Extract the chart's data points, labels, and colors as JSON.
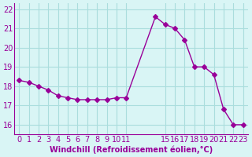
{
  "x": [
    0,
    1,
    2,
    3,
    4,
    5,
    6,
    7,
    8,
    9,
    10,
    11,
    14,
    15,
    16,
    17,
    18,
    19,
    20,
    21,
    22,
    23
  ],
  "y": [
    18.3,
    18.2,
    18.0,
    17.8,
    17.5,
    17.4,
    17.3,
    17.3,
    17.3,
    17.3,
    17.4,
    17.4,
    21.6,
    21.2,
    21.0,
    20.4,
    19.0,
    19.0,
    18.6,
    16.8,
    16.0,
    16.0
  ],
  "line_color": "#990099",
  "marker": "D",
  "marker_size": 3,
  "bg_color": "#d9f5f5",
  "grid_color": "#aadddd",
  "xlabel": "Windchill (Refroidissement éolien,°C)",
  "xlabel_color": "#990099",
  "tick_color": "#990099",
  "ylim": [
    15.5,
    22.3
  ],
  "xlim": [
    -0.5,
    23.5
  ],
  "yticks": [
    16,
    17,
    18,
    19,
    20,
    21,
    22
  ],
  "xticks": [
    0,
    1,
    2,
    3,
    4,
    5,
    6,
    7,
    8,
    9,
    10,
    11,
    15,
    16,
    17,
    18,
    19,
    20,
    21,
    22,
    23
  ],
  "xtick_labels": [
    "0",
    "1",
    "2",
    "3",
    "4",
    "5",
    "6",
    "7",
    "8",
    "9",
    "10",
    "11",
    "15",
    "16",
    "17",
    "18",
    "19",
    "20",
    "21",
    "22",
    "23"
  ],
  "font_size": 7
}
